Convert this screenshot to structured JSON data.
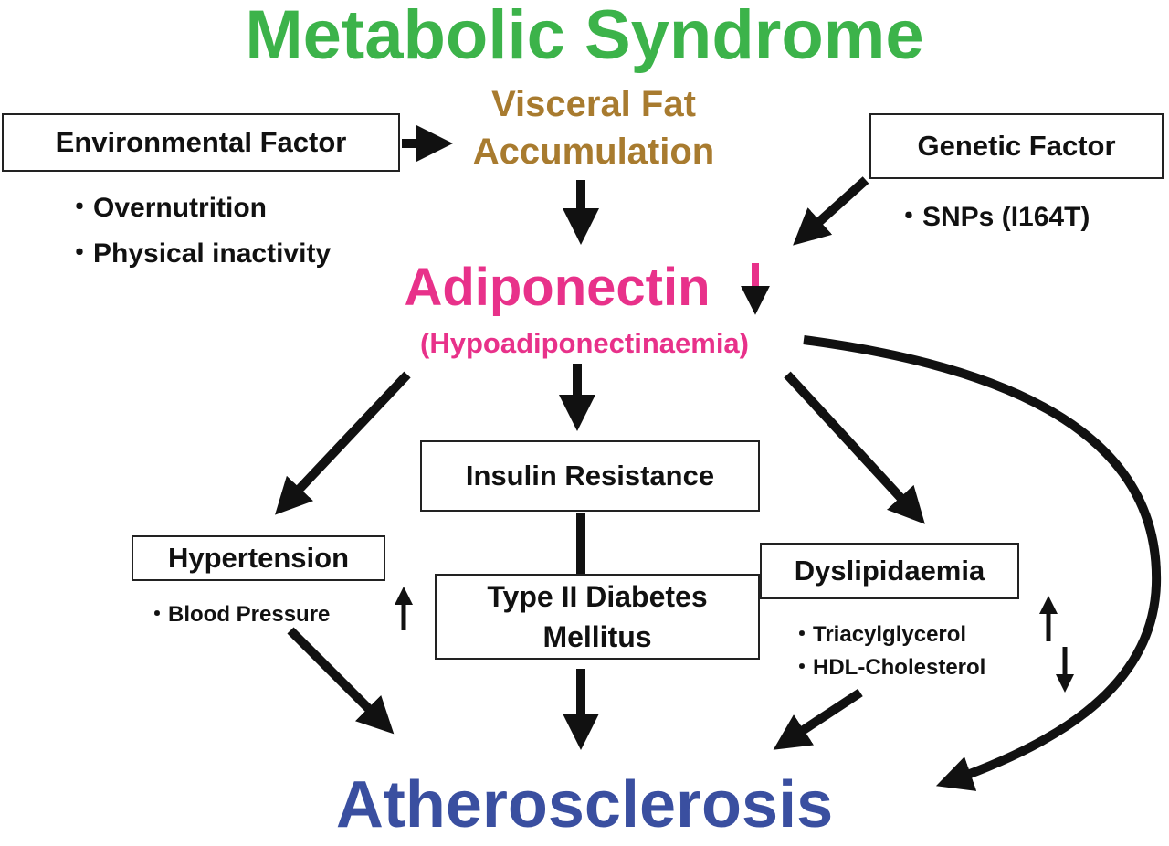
{
  "title": "Metabolic Syndrome",
  "visceral_fat": {
    "line1": "Visceral Fat",
    "line2": "Accumulation"
  },
  "environmental": {
    "label": "Environmental Factor",
    "items": [
      "・Overnutrition",
      "・Physical inactivity"
    ]
  },
  "genetic": {
    "label": "Genetic Factor",
    "items": [
      "・SNPs (I164T)"
    ]
  },
  "adiponectin": {
    "label": "Adiponectin",
    "sub": "(Hypoadiponectinaemia)"
  },
  "insulin_resistance": {
    "label": "Insulin Resistance"
  },
  "diabetes": {
    "line1": "Type II Diabetes",
    "line2": "Mellitus"
  },
  "hypertension": {
    "label": "Hypertension",
    "items": [
      "・Blood Pressure"
    ]
  },
  "dyslipidaemia": {
    "label": "Dyslipidaemia",
    "items": [
      "・Triacylglycerol",
      "・HDL-Cholesterol"
    ]
  },
  "atherosclerosis": {
    "label": "Atherosclerosis"
  },
  "colors": {
    "title": "#3cb34a",
    "visceral": "#a87b2f",
    "adiponectin": "#e8318a",
    "atherosclerosis": "#3a4fa0",
    "arrows": "#111111"
  }
}
